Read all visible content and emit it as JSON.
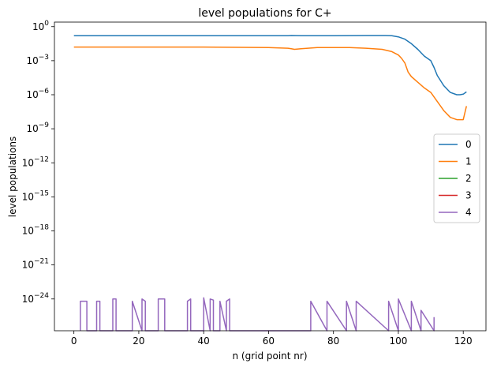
{
  "chart_data": {
    "type": "line",
    "title": "level populations for C+",
    "xlabel": "n (grid point nr)",
    "ylabel": "level populations",
    "xlim": [
      -6,
      127
    ],
    "ylim_log10": [
      -26.8,
      0.4
    ],
    "yscale": "log",
    "grid": false,
    "legend_position": "center-right",
    "x_ticks": [
      0,
      20,
      40,
      60,
      80,
      100,
      120
    ],
    "x_tick_labels": [
      "0",
      "20",
      "40",
      "60",
      "80",
      "100",
      "120"
    ],
    "y_ticks_exp": [
      0,
      -3,
      -6,
      -9,
      -12,
      -15,
      -18,
      -21,
      -24
    ],
    "y_tick_base": "10",
    "y_tick_exponents": [
      "0",
      "−3",
      "−6",
      "−9",
      "−12",
      "−15",
      "−18",
      "−21",
      "−24"
    ],
    "series": [
      {
        "name": "0",
        "color": "#1f77b4",
        "x": [
          0,
          20,
          40,
          60,
          66,
          67,
          70,
          80,
          90,
          96,
          98,
          100,
          102,
          104,
          106,
          108,
          109,
          110,
          111,
          112,
          114,
          116,
          118,
          119,
          120,
          121
        ],
        "log10_y": [
          -0.8,
          -0.8,
          -0.8,
          -0.8,
          -0.8,
          -0.78,
          -0.8,
          -0.8,
          -0.78,
          -0.78,
          -0.8,
          -0.9,
          -1.1,
          -1.5,
          -2.0,
          -2.6,
          -2.8,
          -3.0,
          -3.6,
          -4.3,
          -5.2,
          -5.8,
          -6.0,
          -6.0,
          -5.95,
          -5.75
        ]
      },
      {
        "name": "1",
        "color": "#ff7f0e",
        "x": [
          0,
          20,
          40,
          60,
          66,
          67,
          68,
          70,
          75,
          80,
          85,
          90,
          95,
          98,
          100,
          101,
          102,
          103,
          104,
          106,
          108,
          109,
          110,
          112,
          114,
          116,
          118,
          119,
          120,
          121
        ],
        "log10_y": [
          -1.8,
          -1.8,
          -1.8,
          -1.85,
          -1.9,
          -1.95,
          -2.0,
          -1.95,
          -1.85,
          -1.85,
          -1.85,
          -1.9,
          -2.0,
          -2.2,
          -2.5,
          -2.8,
          -3.2,
          -4.0,
          -4.4,
          -4.9,
          -5.4,
          -5.6,
          -5.8,
          -6.6,
          -7.4,
          -8.0,
          -8.2,
          -8.2,
          -8.2,
          -7.0
        ]
      },
      {
        "name": "2",
        "color": "#2ca02c",
        "x": [],
        "log10_y": []
      },
      {
        "name": "3",
        "color": "#d62728",
        "x": [],
        "log10_y": []
      },
      {
        "name": "4",
        "color": "#9467bd",
        "x": [
          2,
          2,
          4,
          4,
          7,
          7,
          8,
          8,
          12,
          12,
          13,
          13,
          18,
          18,
          21,
          21,
          22,
          22,
          26,
          26,
          28,
          28,
          35,
          35,
          36,
          36,
          40,
          40,
          42,
          42,
          43,
          43,
          45,
          45,
          47,
          47,
          48,
          48,
          73,
          73,
          78,
          78,
          84,
          84,
          87,
          87,
          97,
          97,
          100,
          100,
          104,
          104,
          107,
          107,
          111,
          111
        ],
        "log10_y": [
          -26.8,
          -24.2,
          -24.2,
          -26.8,
          -26.8,
          -24.2,
          -24.2,
          -26.8,
          -26.8,
          -24.0,
          -24.0,
          -26.8,
          -26.8,
          -24.2,
          -26.8,
          -24.0,
          -24.2,
          -26.8,
          -26.8,
          -24.0,
          -24.0,
          -26.8,
          -26.8,
          -24.2,
          -24.0,
          -26.8,
          -26.8,
          -23.9,
          -26.8,
          -24.0,
          -24.1,
          -26.8,
          -26.8,
          -24.2,
          -26.8,
          -24.2,
          -24.0,
          -26.8,
          -26.8,
          -24.2,
          -26.8,
          -24.2,
          -26.8,
          -24.2,
          -26.8,
          -24.2,
          -26.8,
          -24.2,
          -26.8,
          -24.0,
          -26.8,
          -24.2,
          -26.8,
          -25.0,
          -26.8,
          -25.6
        ]
      }
    ]
  }
}
